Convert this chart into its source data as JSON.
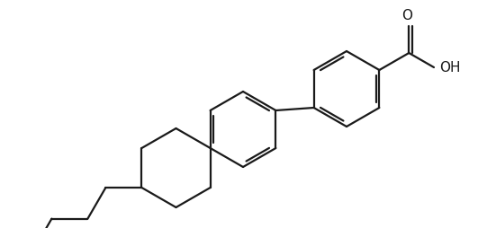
{
  "background": "#ffffff",
  "line_color": "#1a1a1a",
  "line_width": 1.6,
  "dbo": 0.038,
  "fig_width": 5.41,
  "fig_height": 2.54,
  "dpi": 100,
  "xlim": [
    0.0,
    5.41
  ],
  "ylim": [
    0.0,
    2.54
  ]
}
